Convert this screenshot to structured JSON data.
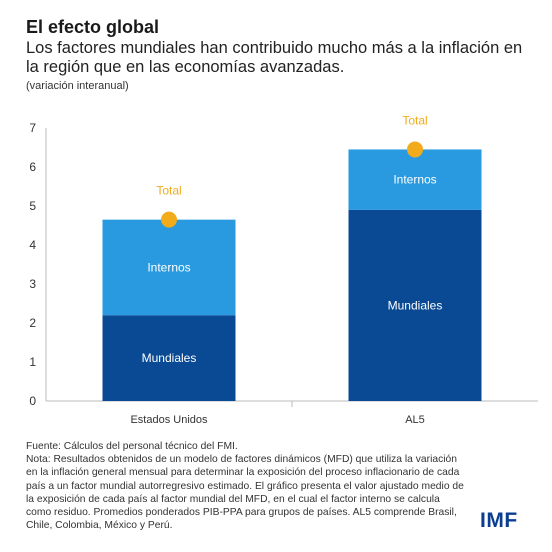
{
  "header": {
    "title": "El efecto global",
    "subtitle": "Los factores mundiales han contribuido mucho más a la inflación en la región que en las economías avanzadas.",
    "unit_note": "(variación interanual)"
  },
  "chart_data": {
    "type": "bar",
    "stacked": true,
    "categories": [
      "Estados Unidos",
      "AL5"
    ],
    "series": [
      {
        "name": "Mundiales",
        "values": [
          2.2,
          4.9
        ],
        "color": "#0a4a94"
      },
      {
        "name": "Internos",
        "values": [
          2.45,
          1.55
        ],
        "color": "#2a9ae0"
      }
    ],
    "totals": {
      "name": "Total",
      "values": [
        4.65,
        6.45
      ],
      "color": "#f2ab1b"
    },
    "ylim": [
      0,
      7
    ],
    "yticks": [
      "0",
      "1",
      "2",
      "3",
      "4",
      "5",
      "6",
      "7"
    ],
    "grid": true,
    "xlabel": "",
    "ylabel": ""
  },
  "footer": {
    "source": "Fuente: Cálculos del personal técnico del FMI.",
    "note": "Nota: Resultados obtenidos de un modelo de factores dinámicos (MFD) que utiliza la variación en la inflación general mensual para determinar la exposición del proceso inflacionario de cada país a un factor mundial autorregresivo estimado. El gráfico presenta el valor ajustado medio de la exposición de cada país al factor mundial del MFD, en el cual el factor interno se calcula como residuo. Promedios ponderados PIB-PPA para grupos de países. AL5 comprende Brasil, Chile, Colombia, México y Perú.",
    "logo": "IMF"
  },
  "colors": {
    "text": "#222222",
    "axis": "#bbbbbb",
    "logo": "#0b3d91"
  }
}
